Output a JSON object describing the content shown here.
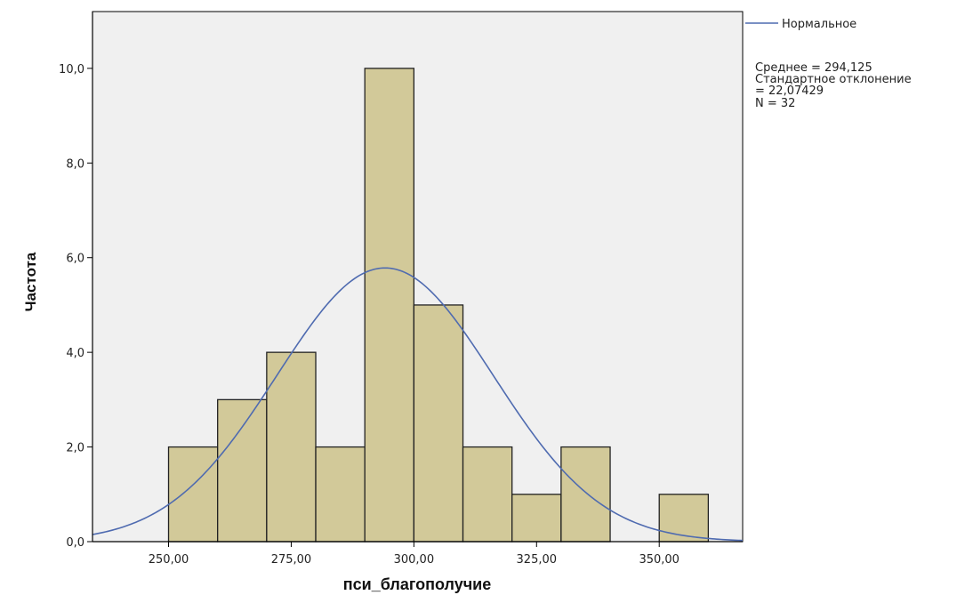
{
  "chart_data": {
    "type": "bar",
    "subtype": "histogram",
    "xlabel": "пси_благополучие",
    "ylabel": "Частота",
    "xlim": [
      234.5,
      367
    ],
    "ylim": [
      0,
      11.2
    ],
    "x_ticks": [
      250,
      275,
      300,
      325,
      350
    ],
    "x_tick_labels": [
      "250,00",
      "275,00",
      "300,00",
      "325,00",
      "350,00"
    ],
    "y_ticks": [
      0,
      2,
      4,
      6,
      8,
      10
    ],
    "y_tick_labels": [
      "0,0",
      "2,0",
      "4,0",
      "6,0",
      "8,0",
      "10,0"
    ],
    "bin_width": 10,
    "bins": [
      {
        "from": 250,
        "to": 260,
        "count": 2
      },
      {
        "from": 260,
        "to": 270,
        "count": 3
      },
      {
        "from": 270,
        "to": 280,
        "count": 4
      },
      {
        "from": 280,
        "to": 290,
        "count": 2
      },
      {
        "from": 290,
        "to": 300,
        "count": 10
      },
      {
        "from": 300,
        "to": 310,
        "count": 5
      },
      {
        "from": 310,
        "to": 320,
        "count": 2
      },
      {
        "from": 320,
        "to": 330,
        "count": 1
      },
      {
        "from": 330,
        "to": 340,
        "count": 2
      },
      {
        "from": 340,
        "to": 350,
        "count": 0
      },
      {
        "from": 350,
        "to": 360,
        "count": 1
      }
    ],
    "normal_curve": {
      "mean": 294.125,
      "std": 22.07429,
      "n": 32
    },
    "legend": {
      "series_label": "Нормальное",
      "stats_lines": [
        "Среднее = 294,125",
        "Стандартное отклонение",
        "= 22,07429",
        "N = 32"
      ],
      "position": "right"
    },
    "colors": {
      "bar_fill": "#d2c999",
      "bar_stroke": "#222222",
      "plot_bg": "#f0f0f0",
      "curve": "#4f6bb0"
    },
    "grid": false
  }
}
